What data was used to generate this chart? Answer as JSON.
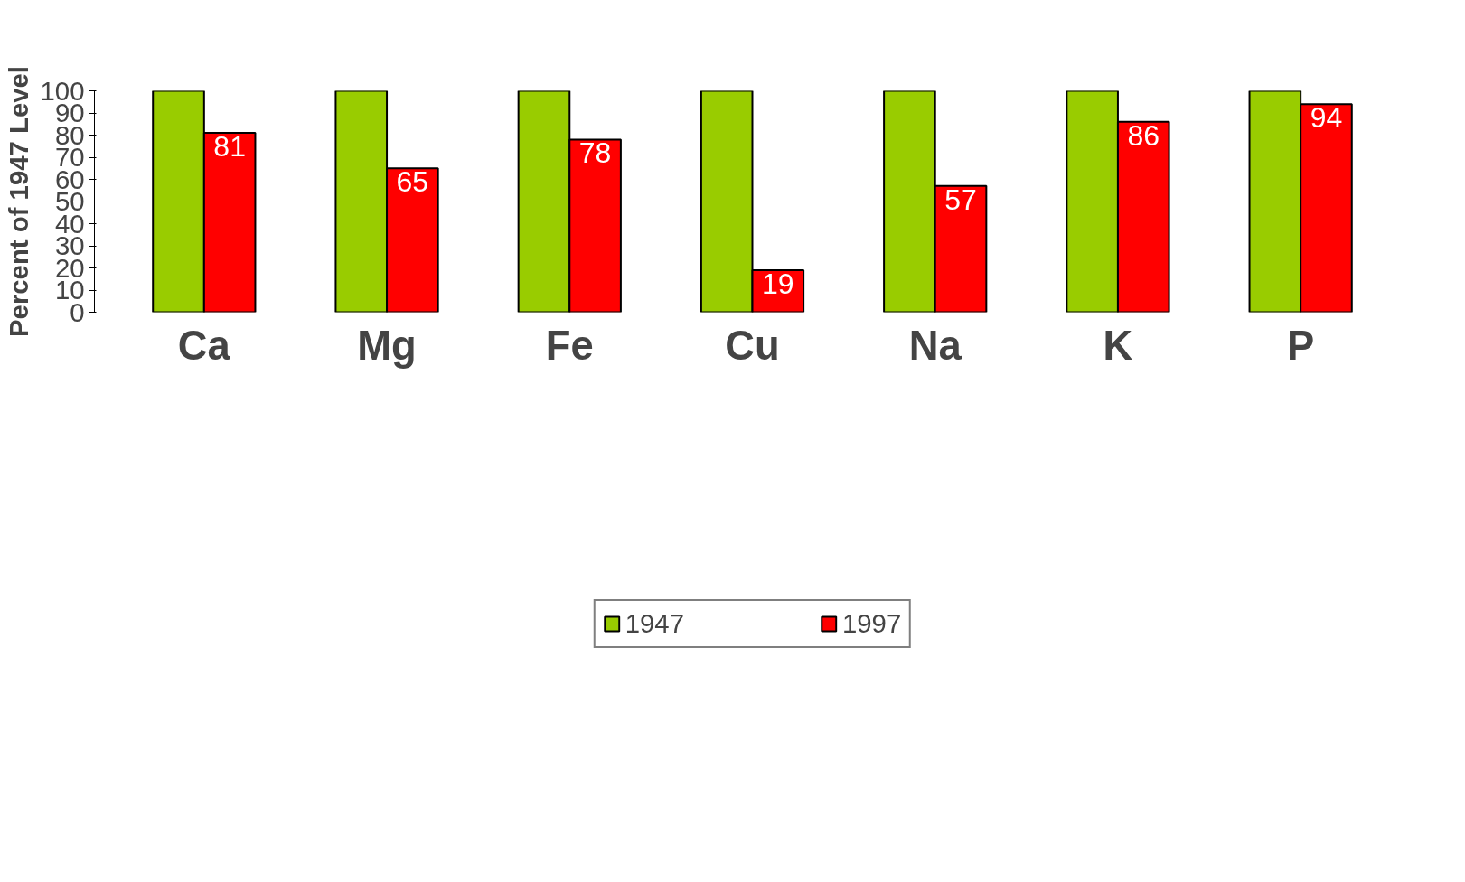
{
  "chart_data": {
    "type": "bar",
    "ylabel": "Percent of 1947 Level",
    "categories": [
      "Ca",
      "Mg",
      "Fe",
      "Cu",
      "Na",
      "K",
      "P"
    ],
    "series": [
      {
        "name": "1947",
        "color": "#99cc00",
        "values": [
          100,
          100,
          100,
          100,
          100,
          100,
          100
        ]
      },
      {
        "name": "1997",
        "color": "#ff0000",
        "values": [
          81,
          65,
          78,
          19,
          57,
          86,
          94
        ],
        "value_labels": [
          "81",
          "65",
          "78",
          "19",
          "57",
          "86",
          "94"
        ]
      }
    ],
    "ylim": [
      0,
      100
    ],
    "yticks": [
      0,
      10,
      20,
      30,
      40,
      50,
      60,
      70,
      80,
      90,
      100
    ],
    "grid": false,
    "legend": "bottom"
  }
}
